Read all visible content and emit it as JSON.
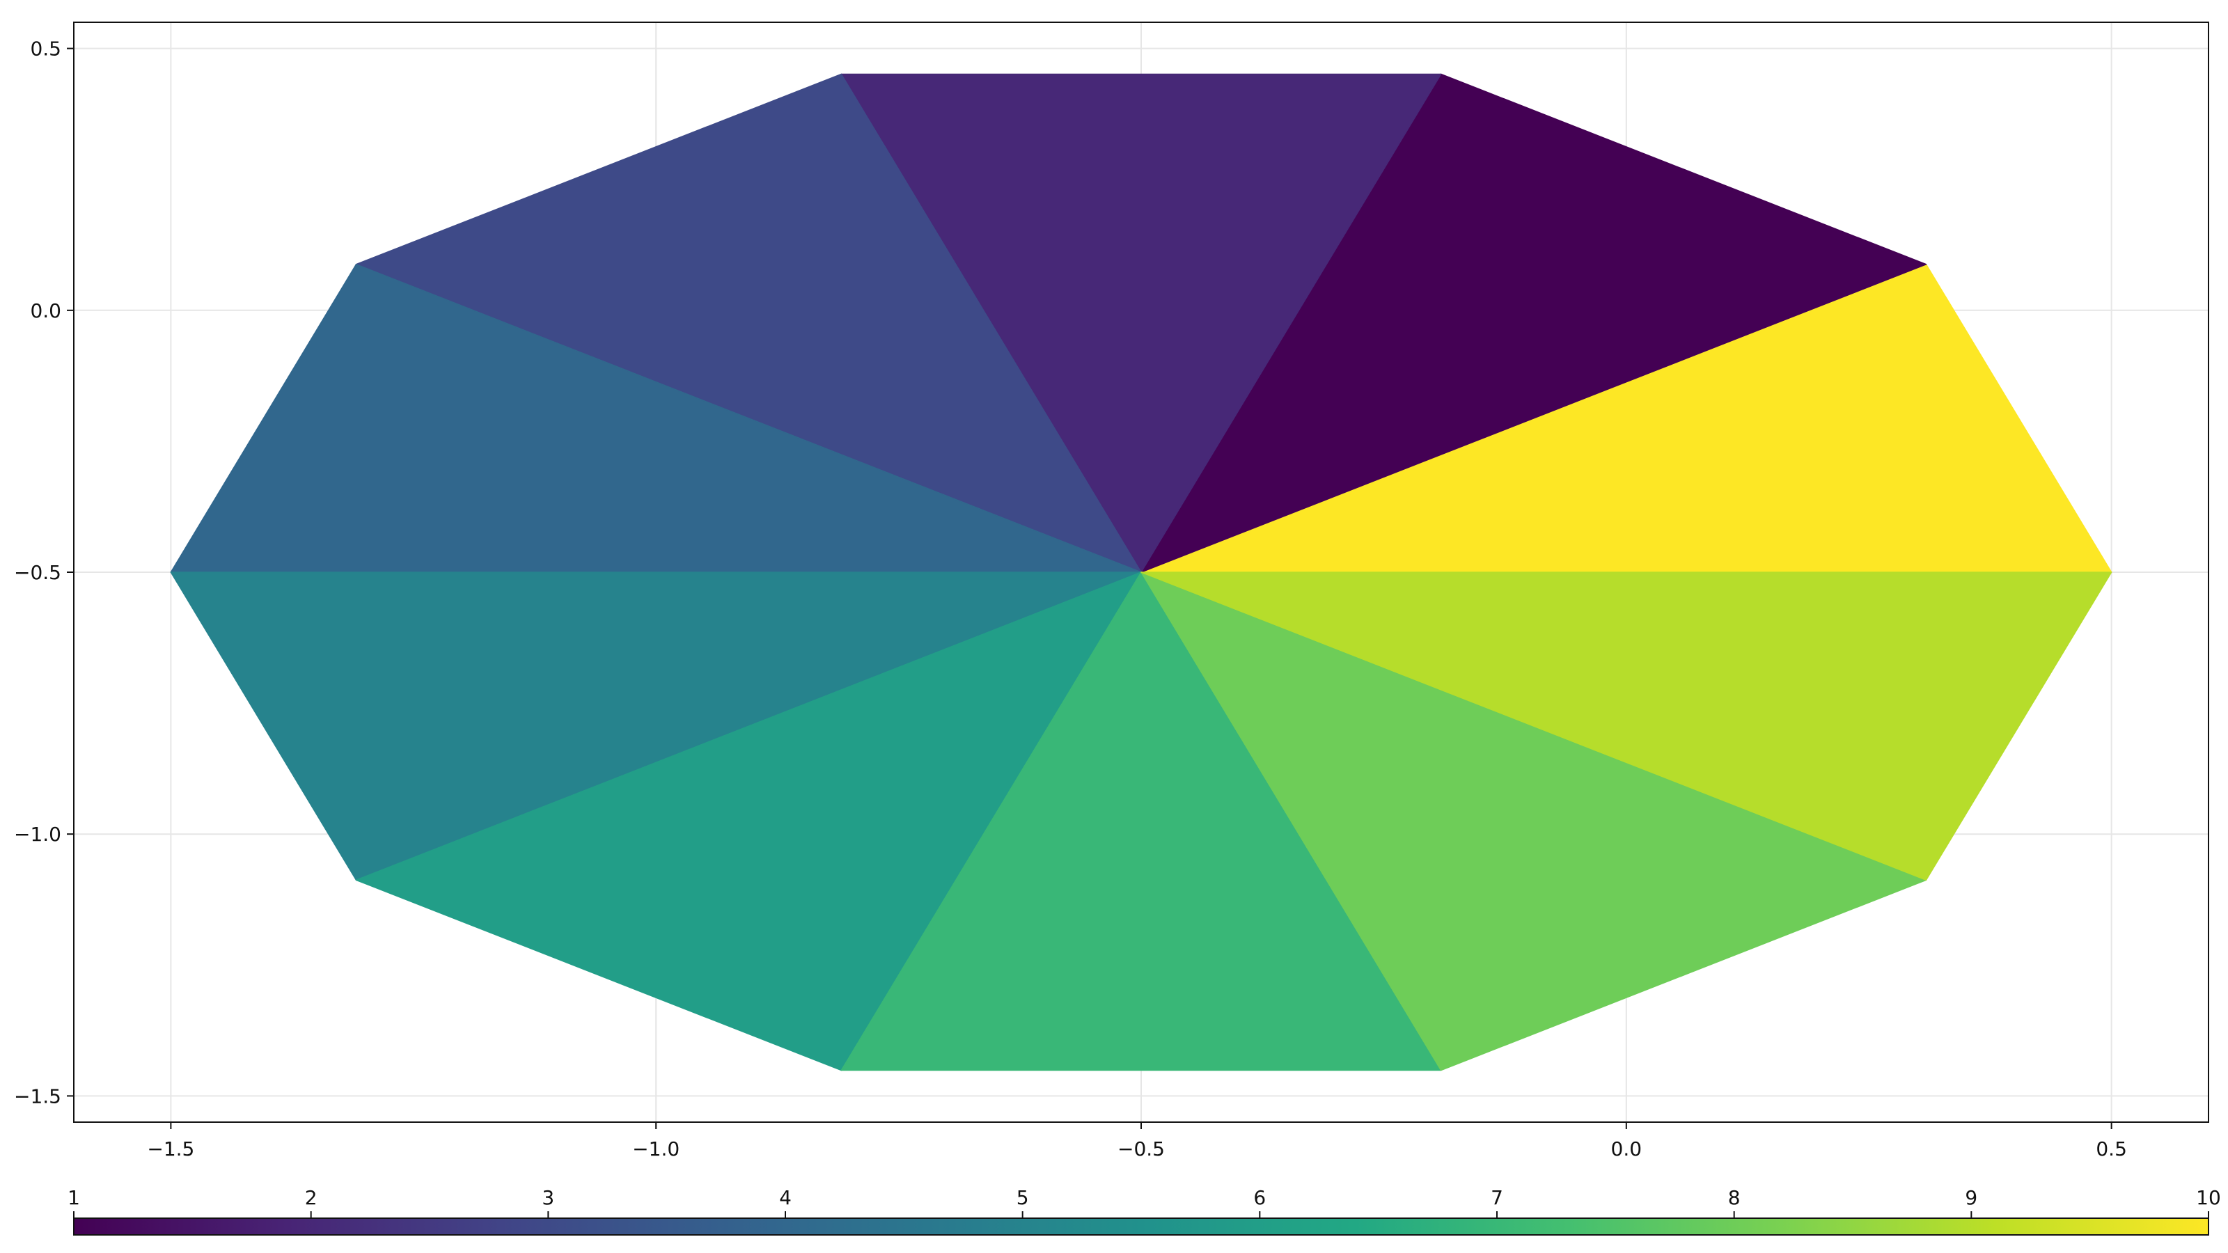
{
  "chart_data": {
    "type": "polygon-mesh",
    "title": "",
    "xlabel": "",
    "ylabel": "",
    "xlim": [
      -1.6,
      0.6
    ],
    "ylim": [
      -1.55,
      0.55
    ],
    "x_ticks": [
      -1.5,
      -1.0,
      -0.5,
      0.0,
      0.5
    ],
    "x_tick_labels": [
      "−1.5",
      "−1.0",
      "−0.5",
      "0.0",
      "0.5"
    ],
    "y_ticks": [
      0.5,
      0.0,
      -0.5,
      -1.0,
      -1.5
    ],
    "y_tick_labels": [
      "0.5",
      "0.0",
      "−0.5",
      "−1.0",
      "−1.5"
    ],
    "grid": true,
    "center": [
      -0.5,
      -0.5
    ],
    "radius_x": 1.0,
    "radius_y": 1.0,
    "segments": 10,
    "start_angle_deg": 0,
    "values": [
      10,
      1,
      2,
      3,
      4,
      5,
      6,
      7,
      8,
      9
    ],
    "colormap": "viridis",
    "colorbar": {
      "position": "bottom",
      "range": [
        1,
        10
      ],
      "ticks": [
        1,
        2,
        3,
        4,
        5,
        6,
        7,
        8,
        9,
        10
      ],
      "tick_labels": [
        "1",
        "2",
        "3",
        "4",
        "5",
        "6",
        "7",
        "8",
        "9",
        "10"
      ]
    }
  }
}
